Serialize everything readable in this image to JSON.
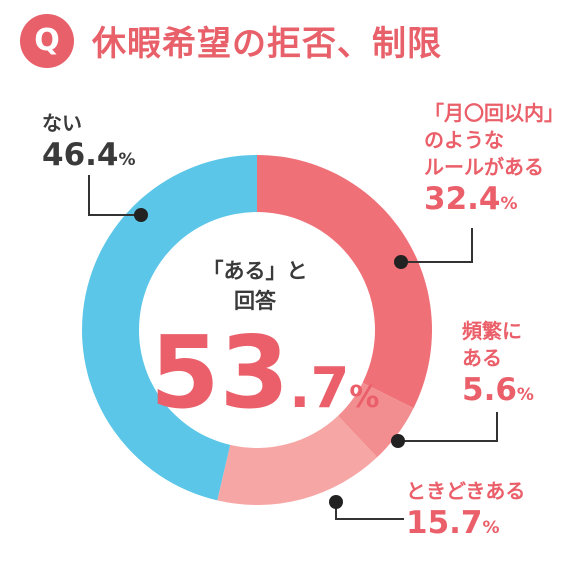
{
  "header": {
    "badge": "Q",
    "title": "休暇希望の拒否、制限"
  },
  "center": {
    "line1": "「ある」と",
    "line2": "回答",
    "value_int": "53",
    "value_dec": ".7",
    "unit": "%"
  },
  "chart_data": {
    "type": "pie",
    "categories": [
      "「月〇回以内」のようなルールがある",
      "頻繁にある",
      "ときどきある",
      "ない"
    ],
    "values": [
      32.4,
      5.6,
      15.7,
      46.4
    ],
    "unit": "%",
    "colors": [
      "#f07078",
      "#f38e90",
      "#f6a7a5",
      "#5bc6e8"
    ],
    "labels": [
      {
        "lines": [
          "「月〇回以内」",
          "のような",
          "ルールがある"
        ],
        "value": "32.4",
        "unit": "%",
        "color": "#ea5f69"
      },
      {
        "lines": [
          "頻繁に",
          "ある"
        ],
        "value": "5.6",
        "unit": "%",
        "color": "#ea5f69"
      },
      {
        "lines": [
          "ときどきある"
        ],
        "value": "15.7",
        "unit": "%",
        "color": "#ea5f69"
      },
      {
        "lines": [
          "ない"
        ],
        "value": "46.4",
        "unit": "%",
        "color": "#3a3a3a"
      }
    ]
  }
}
